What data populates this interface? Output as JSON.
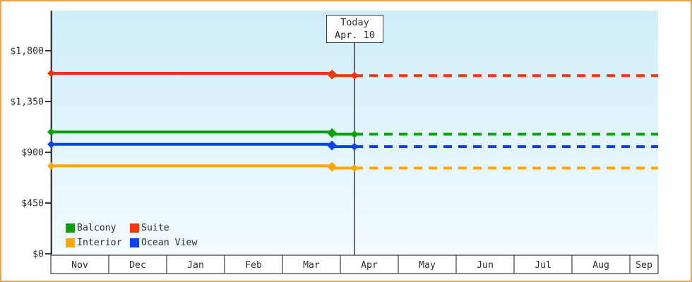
{
  "frame": {
    "border_color": "#e8a550",
    "background": "#ffffff"
  },
  "colors": {
    "axis": "#3a3a3a",
    "text": "#2e2e2e",
    "plot_bg_top": "#cfeefa",
    "plot_bg_bottom": "#f3fbfe",
    "month_row_bg": "#ffffff"
  },
  "chart_data": {
    "type": "line",
    "title": "",
    "xlabel": "",
    "ylabel": "",
    "grid": false,
    "legend_position": "bottom-left",
    "x_categories": [
      "Nov",
      "Dec",
      "Jan",
      "Feb",
      "Mar",
      "Apr",
      "May",
      "Jun",
      "Jul",
      "Aug",
      "Sep"
    ],
    "x_last_cell_truncated": true,
    "y_axis": {
      "ticks": [
        0,
        450,
        900,
        1350,
        1800
      ],
      "tick_labels": [
        "$0",
        "$450",
        "$900",
        "$1,350",
        "$1,800"
      ],
      "ylim": [
        0,
        2160
      ]
    },
    "today_marker": {
      "line1": "Today",
      "line2": "Apr. 10",
      "x_frac": 0.5
    },
    "price_change_x_frac": 0.463,
    "series": [
      {
        "name": "Suite",
        "color": "#f43708",
        "price_start": 1600,
        "price_after_drop": 1580
      },
      {
        "name": "Balcony",
        "color": "#0da00d",
        "price_start": 1080,
        "price_after_drop": 1060
      },
      {
        "name": "Ocean View",
        "color": "#0a41f2",
        "price_start": 970,
        "price_after_drop": 950
      },
      {
        "name": "Interior",
        "color": "#ffa60a",
        "price_start": 780,
        "price_after_drop": 760
      }
    ],
    "line_style": {
      "solid_before_today": true,
      "dashed_after_today": true
    },
    "legend": [
      {
        "label": "Balcony",
        "color": "#0da00d"
      },
      {
        "label": "Suite",
        "color": "#f43708"
      },
      {
        "label": "Interior",
        "color": "#ffa60a"
      },
      {
        "label": "Ocean View",
        "color": "#0a41f2"
      }
    ]
  }
}
